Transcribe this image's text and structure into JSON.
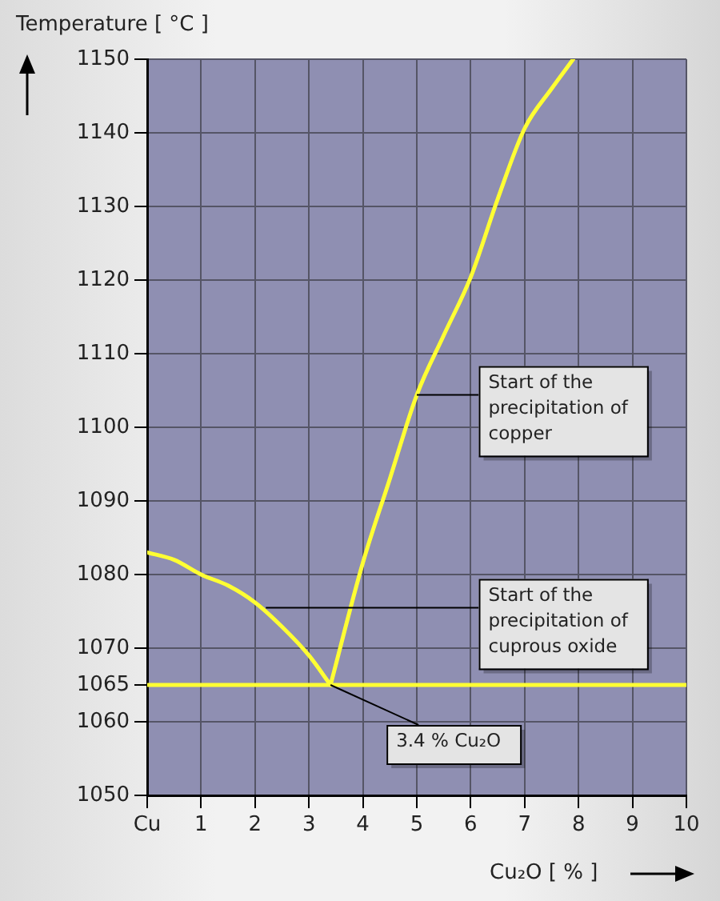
{
  "chart_data": {
    "type": "line",
    "xlabel": "Cu₂O [ % ]",
    "ylabel": "Temperature [ °C ]",
    "series": [
      {
        "color": "#ffff33",
        "x": [
          0,
          0.5,
          1,
          1.5,
          2,
          2.5,
          3,
          3.4
        ],
        "values": [
          1083,
          1082,
          1080,
          1078.5,
          1076.2,
          1072.9,
          1069,
          1065
        ]
      },
      {
        "color": "#ffff33",
        "x": [
          3.4,
          4,
          4.5,
          5,
          5.5,
          6,
          6.5,
          7,
          7.5,
          7.9
        ],
        "values": [
          1065,
          1081.6,
          1093,
          1104.4,
          1112.5,
          1120.4,
          1131,
          1140.6,
          1146,
          1150
        ]
      }
    ],
    "xlim": [
      0,
      10
    ],
    "xticks": [
      {
        "value": 0,
        "label": "Cu"
      },
      1,
      2,
      3,
      4,
      5,
      6,
      7,
      8,
      9,
      10
    ],
    "ylim": [
      1050,
      1150
    ],
    "yticks": [
      1050,
      1060,
      1065,
      1070,
      1080,
      1090,
      1100,
      1110,
      1120,
      1130,
      1140,
      1150
    ],
    "ref_lines": [
      {
        "axis": "y",
        "value": 1065,
        "color": "#ffff33"
      }
    ],
    "grid": true,
    "legend": false,
    "marker": "none",
    "line_style": "solid",
    "annotations": [
      {
        "text": "Start of the precipitation of copper",
        "x": 5,
        "y": 1104.4
      },
      {
        "text": "Start of the precipitation of cuprous oxide",
        "x": 2.2,
        "y": 1075.5
      },
      {
        "text": "3.4 % Cu₂O",
        "x": 3.4,
        "y": 1065
      }
    ]
  }
}
